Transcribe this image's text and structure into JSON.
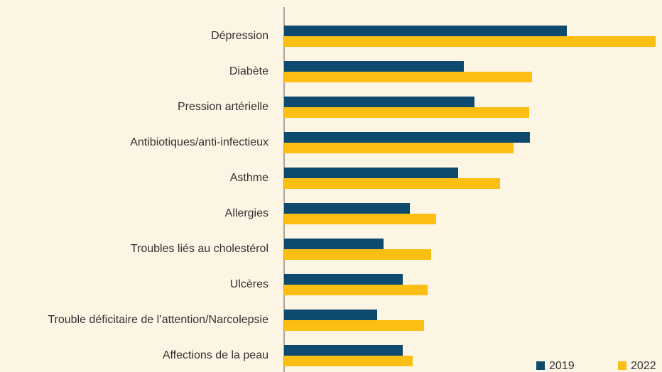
{
  "chart_data": {
    "type": "hbar",
    "categories": [
      "Dépression",
      "Diabète",
      "Pression artérielle",
      "Antibiotiques/anti-infectieux",
      "Asthme",
      "Allergies",
      "Troubles liés au cholestérol",
      "Ulcères",
      "Trouble déficitaire de l’attention/Narcolepsie",
      "Affections de la peau"
    ],
    "series": [
      {
        "name": "2019",
        "color": "#0d4a6e",
        "values": [
          398,
          253,
          268,
          346,
          245,
          177,
          140,
          167,
          131,
          167
        ]
      },
      {
        "name": "2022",
        "color": "#fbbf14",
        "values": [
          523,
          349,
          345,
          323,
          304,
          214,
          207,
          202,
          197,
          181
        ]
      }
    ],
    "xlim": [
      0,
      532
    ],
    "legend": "bottom-right"
  }
}
